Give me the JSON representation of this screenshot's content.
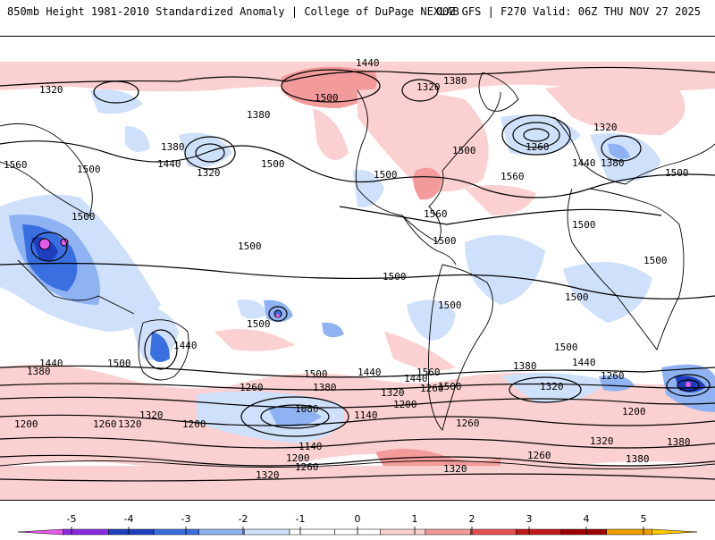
{
  "header": {
    "title_left": "850mb Height 1981-2010 Standardized Anomaly | College of DuPage NEXLAB",
    "title_right": "00Z GFS | F270 Valid: 06Z THU NOV 27 2025"
  },
  "map": {
    "variable": "850mb Height",
    "contour_labels": [
      "1440",
      "1500",
      "1380",
      "1320",
      "1380",
      "1320",
      "1560",
      "1500",
      "1500",
      "1380",
      "1440",
      "1320",
      "1500",
      "1380",
      "1440",
      "1320",
      "1260",
      "1500",
      "1560",
      "1320",
      "1260",
      "1380",
      "1440",
      "1500",
      "1500",
      "1560",
      "1500",
      "1500",
      "1500",
      "1500",
      "1500",
      "1500",
      "1500",
      "1500",
      "1500",
      "1440",
      "1440",
      "1380",
      "1500",
      "1500",
      "1440",
      "1560",
      "1380",
      "1440",
      "1260",
      "1320",
      "1260",
      "1380",
      "1320",
      "1080",
      "1140",
      "1200",
      "1200",
      "1320",
      "1260",
      "1200",
      "1200",
      "1260",
      "1500",
      "1320",
      "1140",
      "1200",
      "1260",
      "1320",
      "1260",
      "1320",
      "1380"
    ]
  },
  "colorbar": {
    "ticks": [
      "-5",
      "-4",
      "-3",
      "-2",
      "-1",
      "0",
      "1",
      "2",
      "3",
      "4",
      "5"
    ],
    "colors": [
      "#e85ae8",
      "#8a2be2",
      "#1f3fbf",
      "#3a6fe0",
      "#8fb2f2",
      "#cfe0fa",
      "#ffffff",
      "#ffffff",
      "#fbd0d0",
      "#f39a9a",
      "#e85050",
      "#c41818",
      "#a00000",
      "#f0a000",
      "#ffc800"
    ]
  }
}
